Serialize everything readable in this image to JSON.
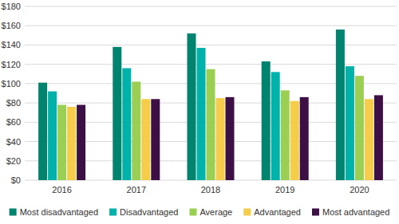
{
  "chart_data": {
    "type": "bar",
    "categories": [
      "2016",
      "2017",
      "2018",
      "2019",
      "2020"
    ],
    "series": [
      {
        "name": "Most disadvantaged",
        "color": "#00836f",
        "values": [
          101,
          138,
          152,
          123,
          156
        ]
      },
      {
        "name": "Disadvantaged",
        "color": "#00b2a9",
        "values": [
          92,
          116,
          137,
          112,
          118
        ]
      },
      {
        "name": "Average",
        "color": "#9bcf53",
        "values": [
          78,
          102,
          115,
          93,
          108
        ]
      },
      {
        "name": "Advantaged",
        "color": "#f5cd4a",
        "values": [
          76,
          84,
          85,
          82,
          84
        ]
      },
      {
        "name": "Most advantaged",
        "color": "#3d1045",
        "values": [
          78,
          84,
          86,
          86,
          88
        ]
      }
    ],
    "ylim": [
      0,
      180
    ],
    "yticks": [
      {
        "value": 0,
        "label": "$0"
      },
      {
        "value": 20,
        "label": "$20"
      },
      {
        "value": 40,
        "label": "$40"
      },
      {
        "value": 60,
        "label": "$60"
      },
      {
        "value": 80,
        "label": "$80"
      },
      {
        "value": 100,
        "label": "$100"
      },
      {
        "value": 120,
        "label": "$120"
      },
      {
        "value": 140,
        "label": "$140"
      },
      {
        "value": 160,
        "label": "$160"
      },
      {
        "value": 180,
        "label": "$180"
      }
    ],
    "grid": true,
    "legend": "bottom"
  }
}
